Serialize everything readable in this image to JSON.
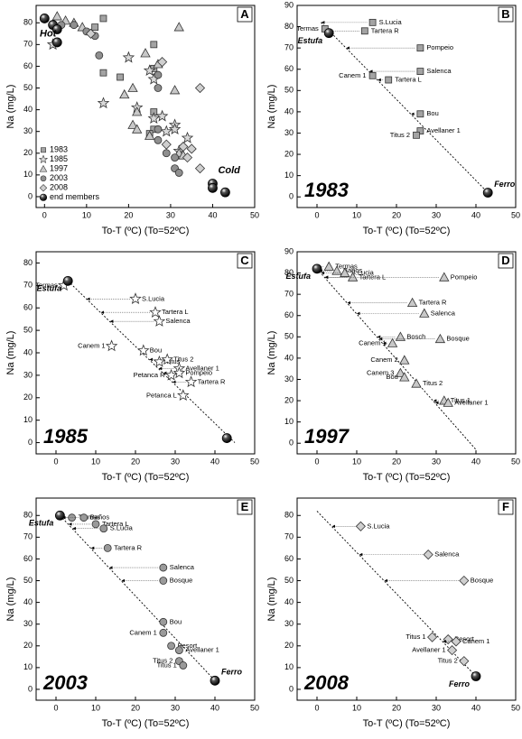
{
  "chart_data": [
    {
      "type": "scatter",
      "panel_label": "A",
      "xlabel": "To-T (ºC) (To=52ºC)",
      "ylabel": "Na (mg/L)",
      "xlim": [
        -2,
        50
      ],
      "ylim": [
        -5,
        88
      ],
      "xticks": [
        0,
        10,
        20,
        30,
        40,
        50
      ],
      "yticks": [
        0,
        10,
        20,
        30,
        40,
        50,
        60,
        70,
        80
      ],
      "legend": "lower left",
      "annotations": [
        "Hot",
        "Cold"
      ],
      "series": [
        {
          "name": "1983",
          "marker": "square",
          "color": "#a3a3a3",
          "x": [
            2,
            14,
            12,
            26,
            26,
            14,
            18,
            26,
            26,
            25
          ],
          "values": [
            79,
            82,
            78,
            70,
            59,
            57,
            55,
            39,
            31,
            29
          ]
        },
        {
          "name": "1985",
          "marker": "star",
          "color": "#d9d9d9",
          "x": [
            2,
            20,
            25,
            26,
            14,
            22,
            26,
            28,
            31,
            31,
            29,
            34,
            32
          ],
          "values": [
            70,
            64,
            58,
            54,
            43,
            41,
            36,
            37,
            33,
            31,
            30,
            27,
            21
          ]
        },
        {
          "name": "1997",
          "marker": "triangle",
          "color": "#c8c8c8",
          "x": [
            3,
            5,
            7,
            9,
            32,
            24,
            27,
            21,
            31,
            19,
            22,
            21,
            22,
            25,
            32,
            33
          ],
          "values": [
            83,
            81,
            80,
            78,
            78,
            66,
            61,
            50,
            49,
            47,
            39,
            33,
            31,
            28,
            20,
            19
          ]
        },
        {
          "name": "2003",
          "marker": "circle",
          "color": "#8f8f8f",
          "x": [
            4,
            7,
            10,
            12,
            13,
            27,
            27,
            27,
            27,
            29,
            31,
            31,
            32
          ],
          "values": [
            79,
            79,
            76,
            74,
            65,
            56,
            50,
            31,
            26,
            20,
            18,
            13,
            11
          ]
        },
        {
          "name": "2008",
          "marker": "diamond",
          "color": "#cfcfcf",
          "x": [
            11,
            28,
            37,
            33,
            35,
            29,
            34,
            37
          ],
          "values": [
            75,
            62,
            50,
            23,
            22,
            24,
            18,
            13
          ]
        },
        {
          "name": "end members",
          "marker": "ball",
          "color": "#000000",
          "x": [
            0,
            2,
            3,
            3,
            40,
            40,
            43
          ],
          "values": [
            82,
            79,
            77,
            71,
            6,
            4,
            2
          ]
        }
      ]
    },
    {
      "type": "scatter",
      "panel_label": "B",
      "annotation": "1983",
      "xlabel": "To-T (ºC) (To=52ºC)",
      "ylabel": "Na (mg/L)",
      "xlim": [
        -5,
        50
      ],
      "ylim": [
        -5,
        90
      ],
      "xticks": [
        0,
        10,
        20,
        30,
        40,
        50
      ],
      "yticks": [
        0,
        10,
        20,
        30,
        40,
        50,
        60,
        70,
        80,
        90
      ],
      "mixing_line": {
        "x": [
          1,
          43
        ],
        "y": [
          82,
          2
        ]
      },
      "series": [
        {
          "marker": "square",
          "color": "#a3a3a3",
          "labels": [
            "Termas",
            "S.Lucia",
            "Tartera R",
            "Pompeio",
            "Salenca",
            "Canem 1",
            "Tartera L",
            "Bou",
            "Avellaner 1",
            "Titus 2"
          ],
          "x": [
            2,
            14,
            12,
            26,
            26,
            14,
            18,
            26,
            26,
            25
          ],
          "values": [
            79,
            82,
            78,
            70,
            59,
            57,
            55,
            39,
            31,
            29
          ]
        },
        {
          "marker": "ball",
          "color": "#000000",
          "labels": [
            "Estufa",
            "Ferro"
          ],
          "x": [
            3,
            43
          ],
          "values": [
            77,
            2
          ]
        }
      ]
    },
    {
      "type": "scatter",
      "panel_label": "C",
      "annotation": "1985",
      "xlabel": "To-T (ºC) (To=52ºC)",
      "ylabel": "Na (mg/L)",
      "xlim": [
        -5,
        50
      ],
      "ylim": [
        -5,
        85
      ],
      "xticks": [
        0,
        10,
        20,
        30,
        40,
        50
      ],
      "yticks": [
        0,
        10,
        20,
        30,
        40,
        50,
        60,
        70,
        80
      ],
      "mixing_line": {
        "x": [
          3,
          45
        ],
        "y": [
          72,
          0
        ]
      },
      "series": [
        {
          "marker": "star",
          "color": "#ffffff",
          "labels": [
            "Termas",
            "S.Lucia",
            "Tartera L",
            "Salenca",
            "Canem 1",
            "Bou",
            "Titus",
            "Titus 2",
            "Avellaner 1",
            "Pompeio",
            "Petanca R",
            "Tartera R",
            "Petanca L"
          ],
          "x": [
            2,
            20,
            25,
            26,
            14,
            22,
            26,
            28,
            31,
            31,
            29,
            34,
            32
          ],
          "values": [
            70,
            64,
            58,
            54,
            43,
            41,
            36,
            37,
            33,
            31,
            30,
            27,
            21
          ]
        },
        {
          "marker": "ball",
          "color": "#000000",
          "labels": [
            "Estufa",
            null
          ],
          "x": [
            3,
            43
          ],
          "values": [
            72,
            2
          ]
        }
      ]
    },
    {
      "type": "scatter",
      "panel_label": "D",
      "annotation": "1997",
      "xlabel": "To-T (ºC) (To=52ºC)",
      "ylabel": "Na (mg/L)",
      "xlim": [
        -5,
        50
      ],
      "ylim": [
        -5,
        90
      ],
      "xticks": [
        0,
        10,
        20,
        30,
        40,
        50
      ],
      "yticks": [
        0,
        10,
        20,
        30,
        40,
        50,
        60,
        70,
        80,
        90
      ],
      "mixing_line": {
        "x": [
          0,
          40
        ],
        "y": [
          82,
          -3
        ]
      },
      "series": [
        {
          "marker": "triangle",
          "color": "#c8c8c8",
          "labels": [
            "Termas",
            "Baños",
            "S.Lucia",
            "Tartera L",
            "Pompeio",
            "Tartera R",
            "Salenca",
            "Bosch",
            "Bosque",
            "Canem 1",
            "Canem 2",
            "Canem 3",
            "Bou",
            "Titus 2",
            "Titus 1",
            "Avellaner 1"
          ],
          "x": [
            3,
            5,
            7,
            9,
            32,
            24,
            27,
            21,
            31,
            19,
            22,
            21,
            22,
            25,
            32,
            33
          ],
          "values": [
            83,
            81,
            80,
            78,
            78,
            66,
            61,
            50,
            49,
            47,
            39,
            33,
            31,
            28,
            20,
            19
          ]
        },
        {
          "marker": "ball",
          "color": "#000000",
          "labels": [
            "Estufa"
          ],
          "x": [
            0
          ],
          "values": [
            82
          ]
        }
      ]
    },
    {
      "type": "scatter",
      "panel_label": "E",
      "annotation": "2003",
      "xlabel": "To-T (ºC) (To=52ºC)",
      "ylabel": "Na (mg/L)",
      "xlim": [
        -5,
        50
      ],
      "ylim": [
        -5,
        88
      ],
      "xticks": [
        0,
        10,
        20,
        30,
        40,
        50
      ],
      "yticks": [
        0,
        10,
        20,
        30,
        40,
        50,
        60,
        70,
        80
      ],
      "mixing_line": {
        "x": [
          1,
          40
        ],
        "y": [
          80,
          4
        ]
      },
      "series": [
        {
          "marker": "circle",
          "color": "#9a9a9a",
          "labels": [
            "Termas",
            "Baños",
            "Tartera L",
            "S.Lucia",
            "Tartera R",
            "Salenca",
            "Bosque",
            "Bou",
            "Canem 1",
            "Besort",
            "Avellaner 1",
            "Titus 2",
            "Titus 1"
          ],
          "x": [
            4,
            7,
            10,
            12,
            13,
            27,
            27,
            27,
            27,
            29,
            31,
            31,
            32
          ],
          "values": [
            79,
            79,
            76,
            74,
            65,
            56,
            50,
            31,
            26,
            20,
            18,
            13,
            11
          ]
        },
        {
          "marker": "ball",
          "color": "#000000",
          "labels": [
            "Estufa",
            "Ferro"
          ],
          "x": [
            1,
            40
          ],
          "values": [
            80,
            4
          ]
        }
      ]
    },
    {
      "type": "scatter",
      "panel_label": "F",
      "annotation": "2008",
      "xlabel": "To-T (ºC) (To=52ºC)",
      "ylabel": "Na (mg/L)",
      "xlim": [
        -5,
        50
      ],
      "ylim": [
        -5,
        88
      ],
      "xticks": [
        0,
        10,
        20,
        30,
        40,
        50
      ],
      "yticks": [
        0,
        10,
        20,
        30,
        40,
        50,
        60,
        70,
        80
      ],
      "mixing_line": {
        "x": [
          0,
          40
        ],
        "y": [
          82,
          6
        ]
      },
      "series": [
        {
          "marker": "diamond",
          "color": "#cfcfcf",
          "labels": [
            "S.Lucia",
            "Salenca",
            "Bosque",
            "Besort",
            "Canem 1",
            "Titus 1",
            "Avellaner 1",
            "Titus 2"
          ],
          "x": [
            11,
            28,
            37,
            33,
            35,
            29,
            34,
            37
          ],
          "values": [
            75,
            62,
            50,
            23,
            22,
            24,
            18,
            13
          ]
        },
        {
          "marker": "ball",
          "color": "#000000",
          "labels": [
            "Ferro"
          ],
          "x": [
            40
          ],
          "values": [
            6
          ]
        }
      ]
    }
  ]
}
